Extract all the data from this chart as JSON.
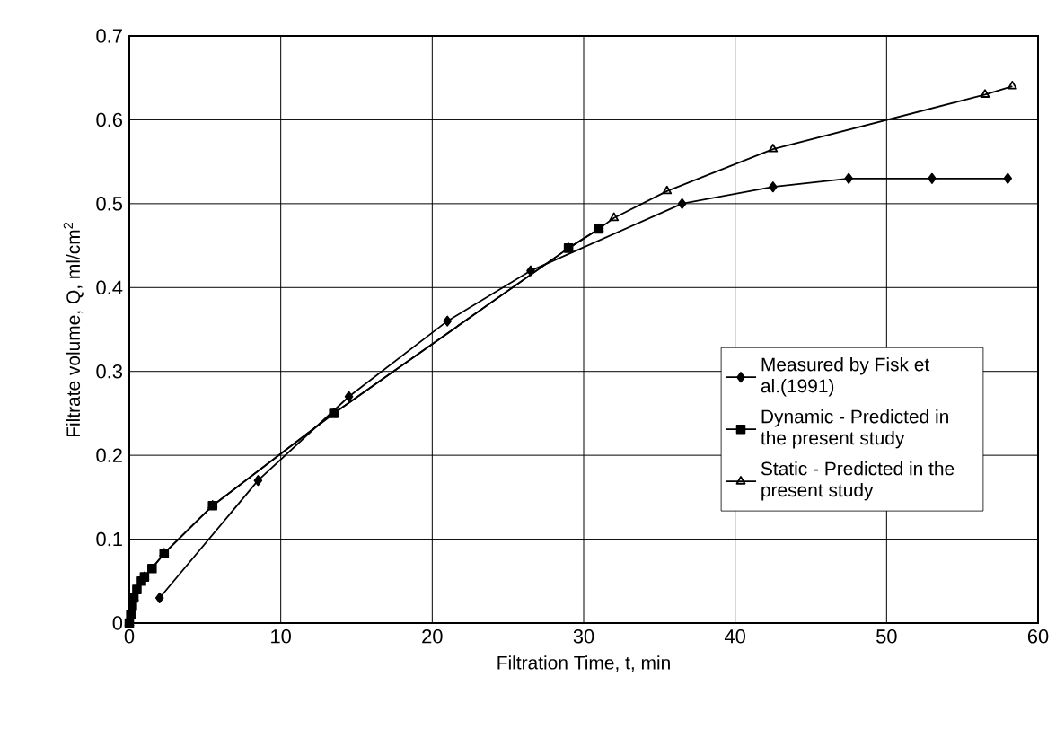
{
  "chart_data": {
    "type": "line",
    "xlabel": "Filtration Time, t, min",
    "ylabel": "Filtrate volume, Q, ml/cm$^{2}$",
    "xlim": [
      0,
      60
    ],
    "ylim": [
      0,
      0.7
    ],
    "xticks": [
      0,
      10,
      20,
      30,
      40,
      50,
      60
    ],
    "yticks": [
      0,
      0.1,
      0.2,
      0.3,
      0.4,
      0.5,
      0.6,
      0.7
    ],
    "grid": true,
    "legend": "right",
    "series": [
      {
        "name": "Measured by Fisk et al.(1991)",
        "color": "#000000",
        "marker": "diamond",
        "x": [
          2,
          8.5,
          14.5,
          21,
          26.5,
          36.5,
          42.5,
          47.5,
          53,
          58
        ],
        "values": [
          0.03,
          0.17,
          0.27,
          0.36,
          0.42,
          0.5,
          0.52,
          0.53,
          0.53,
          0.53
        ]
      },
      {
        "name": "Dynamic - Predicted in the present study",
        "color": "#000000",
        "marker": "square",
        "x": [
          0,
          0.1,
          0.2,
          0.3,
          0.5,
          0.8,
          1,
          1.5,
          2.3,
          5.5,
          13.5,
          29,
          31
        ],
        "values": [
          0,
          0.01,
          0.02,
          0.03,
          0.04,
          0.05,
          0.055,
          0.065,
          0.083,
          0.14,
          0.25,
          0.447,
          0.47
        ]
      },
      {
        "name": "Static - Predicted in the present study",
        "color": "#000000",
        "marker": "triangle",
        "x": [
          0,
          0.3,
          1,
          2.3,
          5.5,
          13.5,
          29,
          31,
          32,
          35.5,
          42.5,
          56.5,
          58.3
        ],
        "values": [
          0,
          0.03,
          0.055,
          0.083,
          0.14,
          0.25,
          0.447,
          0.47,
          0.483,
          0.515,
          0.565,
          0.63,
          0.64
        ]
      }
    ]
  }
}
